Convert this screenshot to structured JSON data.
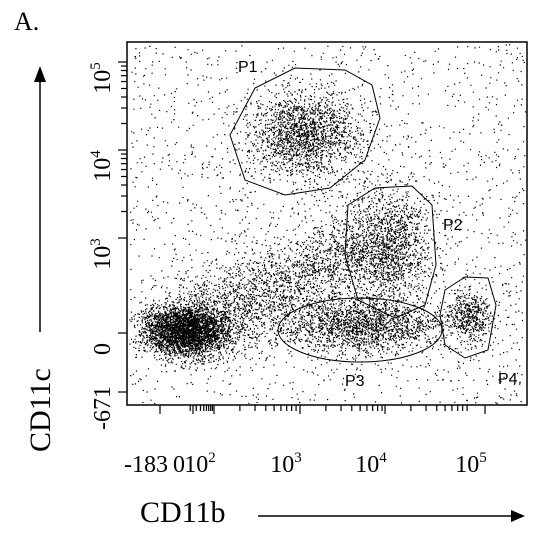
{
  "panel_label": "A.",
  "x_axis": {
    "title": "CD11b",
    "ticks": [
      {
        "base": "-183"
      },
      {
        "base": "0"
      },
      {
        "base": "10",
        "exp": "2"
      },
      {
        "base": "10",
        "exp": "3"
      },
      {
        "base": "10",
        "exp": "4"
      },
      {
        "base": "10",
        "exp": "5"
      }
    ]
  },
  "y_axis": {
    "title": "CD11c",
    "ticks": [
      {
        "base": "10",
        "exp": "5"
      },
      {
        "base": "10",
        "exp": "4"
      },
      {
        "base": "10",
        "exp": "3"
      },
      {
        "base": "0"
      },
      {
        "base": "-671"
      }
    ]
  },
  "gates": [
    "P1",
    "P2",
    "P3",
    "P4"
  ]
}
